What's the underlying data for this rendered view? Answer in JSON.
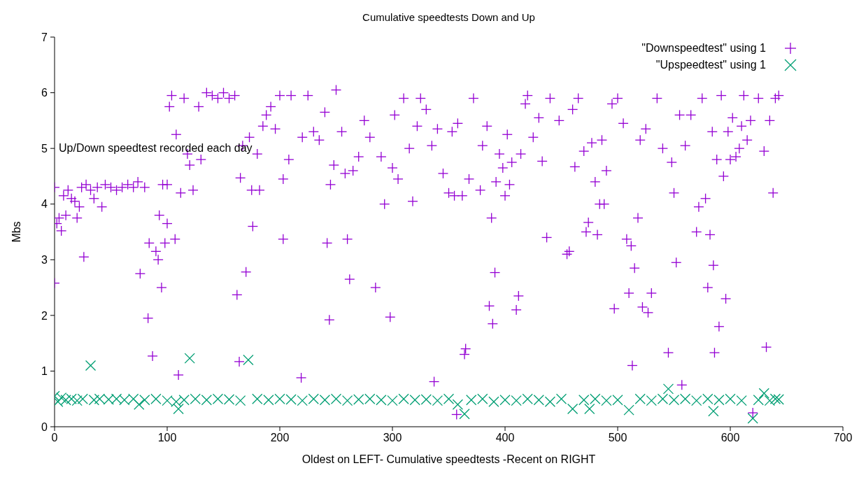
{
  "chart_data": {
    "type": "scatter",
    "title": "Cumulative speedtests Down and Up",
    "xlabel": "Oldest on LEFT- Cumulative speedtests -Recent on RIGHT",
    "ylabel": "Mbs",
    "annotations": [
      "Up/Down speedtest recorded each day"
    ],
    "xlim": [
      0,
      700
    ],
    "xticks": [
      0,
      100,
      200,
      300,
      400,
      500,
      600,
      700
    ],
    "ylim": [
      0,
      7
    ],
    "yticks": [
      0,
      1,
      2,
      3,
      4,
      5,
      6,
      7
    ],
    "grid": false,
    "legend": "top right",
    "series": [
      {
        "name": "\"Downspeedtest\" using 1",
        "color": "#9400d3",
        "marker": "plus",
        "x": [
          0,
          0,
          2,
          4,
          6,
          8,
          10,
          12,
          15,
          18,
          20,
          22,
          24,
          26,
          28,
          32,
          35,
          38,
          42,
          45,
          50,
          55,
          60,
          65,
          70,
          74,
          76,
          80,
          83,
          84,
          87,
          90,
          92,
          93,
          95,
          96,
          98,
          100,
          100,
          102,
          104,
          107,
          108,
          110,
          112,
          115,
          118,
          120,
          123,
          128,
          130,
          135,
          140,
          145,
          150,
          155,
          160,
          162,
          164,
          165,
          167,
          170,
          173,
          175,
          176,
          180,
          182,
          185,
          188,
          192,
          196,
          200,
          203,
          203,
          208,
          210,
          219,
          220,
          225,
          230,
          235,
          240,
          242,
          244,
          245,
          248,
          250,
          255,
          258,
          260,
          262,
          265,
          270,
          275,
          280,
          285,
          290,
          293,
          298,
          300,
          302,
          305,
          310,
          315,
          318,
          322,
          325,
          330,
          335,
          337,
          340,
          345,
          350,
          353,
          355,
          357,
          358,
          362,
          364,
          365,
          368,
          372,
          378,
          380,
          384,
          386,
          388,
          389,
          391,
          392,
          395,
          398,
          400,
          402,
          404,
          406,
          410,
          412,
          414,
          418,
          420,
          425,
          430,
          433,
          437,
          440,
          448,
          455,
          457,
          460,
          462,
          465,
          470,
          472,
          474,
          477,
          480,
          482,
          484,
          486,
          488,
          490,
          495,
          497,
          500,
          505,
          508,
          510,
          512,
          513,
          515,
          518,
          520,
          522,
          525,
          527,
          530,
          535,
          540,
          545,
          548,
          550,
          552,
          555,
          557,
          560,
          565,
          570,
          572,
          575,
          578,
          580,
          582,
          584,
          585,
          586,
          588,
          590,
          592,
          594,
          596,
          598,
          600,
          602,
          605,
          608,
          610,
          612,
          615,
          618,
          620,
          625,
          630,
          632,
          635,
          638,
          640,
          643
        ],
        "values": [
          4.3,
          2.58,
          3.65,
          3.75,
          3.52,
          4.15,
          3.8,
          4.25,
          4.1,
          4.05,
          3.75,
          3.95,
          4.3,
          3.05,
          4.35,
          4.25,
          4.1,
          4.3,
          3.95,
          4.35,
          4.3,
          4.25,
          4.3,
          4.35,
          4.3,
          4.4,
          2.75,
          4.3,
          1.95,
          3.3,
          1.27,
          3.15,
          3.0,
          3.8,
          2.5,
          4.35,
          3.3,
          3.65,
          4.35,
          5.75,
          5.95,
          3.37,
          5.25,
          0.93,
          4.2,
          5.9,
          4.9,
          4.7,
          4.25,
          5.75,
          4.8,
          6.0,
          5.95,
          5.9,
          6.0,
          5.9,
          5.95,
          2.37,
          1.17,
          4.47,
          5.05,
          2.78,
          5.2,
          4.25,
          3.6,
          4.9,
          4.25,
          5.4,
          5.6,
          5.75,
          5.35,
          5.95,
          3.37,
          4.45,
          4.8,
          5.95,
          0.88,
          5.2,
          5.95,
          5.3,
          5.15,
          5.65,
          3.3,
          1.92,
          4.35,
          4.7,
          6.05,
          5.3,
          4.55,
          3.37,
          2.65,
          4.6,
          4.85,
          5.5,
          5.2,
          2.5,
          4.85,
          4.0,
          1.97,
          4.65,
          5.6,
          4.45,
          5.9,
          5.0,
          4.05,
          5.4,
          5.9,
          5.7,
          5.05,
          0.81,
          5.35,
          4.55,
          4.2,
          5.3,
          4.15,
          0.22,
          5.45,
          4.15,
          1.3,
          1.4,
          4.45,
          5.9,
          4.25,
          5.05,
          5.4,
          2.17,
          3.75,
          1.85,
          2.77,
          4.4,
          4.9,
          4.65,
          4.15,
          5.25,
          4.35,
          4.75,
          2.1,
          2.35,
          4.9,
          5.8,
          5.95,
          5.2,
          5.55,
          4.77,
          3.4,
          5.9,
          5.5,
          3.1,
          3.15,
          5.7,
          4.67,
          5.9,
          4.95,
          3.5,
          3.67,
          5.1,
          4.4,
          3.45,
          4.0,
          5.15,
          4.0,
          4.6,
          5.8,
          2.12,
          5.9,
          5.45,
          3.37,
          2.4,
          3.25,
          1.1,
          2.85,
          3.75,
          5.15,
          2.15,
          5.35,
          2.05,
          2.4,
          5.9,
          5.0,
          1.33,
          4.75,
          4.2,
          2.95,
          5.6,
          0.75,
          5.05,
          5.6,
          3.5,
          3.95,
          5.9,
          4.1,
          2.5,
          3.45,
          5.3,
          2.9,
          1.33,
          4.8,
          1.8,
          5.95,
          4.5,
          2.3,
          5.3,
          4.8,
          5.55,
          4.85,
          5.0,
          5.4,
          5.95,
          5.15,
          5.5,
          0.25,
          5.9,
          4.95,
          1.43,
          5.5,
          4.2,
          5.9,
          5.95
        ]
      },
      {
        "name": "\"Upspeedtest\" using 1",
        "color": "#009e73",
        "marker": "cross",
        "x": [
          0,
          3,
          6,
          10,
          15,
          20,
          25,
          32,
          35,
          40,
          48,
          55,
          62,
          70,
          75,
          80,
          90,
          100,
          108,
          110,
          115,
          120,
          125,
          135,
          145,
          155,
          165,
          172,
          180,
          190,
          200,
          210,
          220,
          230,
          240,
          250,
          260,
          270,
          280,
          290,
          300,
          310,
          320,
          330,
          340,
          350,
          358,
          364,
          370,
          380,
          390,
          400,
          410,
          420,
          430,
          440,
          450,
          460,
          470,
          475,
          480,
          490,
          500,
          510,
          520,
          530,
          540,
          545,
          550,
          560,
          570,
          580,
          585,
          590,
          600,
          610,
          620,
          625,
          630,
          635,
          640,
          643
        ],
        "values": [
          0.55,
          0.45,
          0.52,
          0.48,
          0.5,
          0.47,
          0.5,
          1.1,
          0.48,
          0.5,
          0.49,
          0.5,
          0.48,
          0.5,
          0.4,
          0.48,
          0.5,
          0.47,
          0.45,
          0.32,
          0.48,
          1.23,
          0.5,
          0.48,
          0.5,
          0.49,
          0.47,
          1.2,
          0.5,
          0.48,
          0.5,
          0.49,
          0.47,
          0.5,
          0.48,
          0.5,
          0.47,
          0.49,
          0.5,
          0.48,
          0.47,
          0.5,
          0.48,
          0.49,
          0.47,
          0.5,
          0.4,
          0.23,
          0.48,
          0.5,
          0.45,
          0.48,
          0.47,
          0.5,
          0.48,
          0.45,
          0.5,
          0.32,
          0.48,
          0.32,
          0.5,
          0.47,
          0.48,
          0.3,
          0.5,
          0.47,
          0.5,
          0.68,
          0.48,
          0.5,
          0.47,
          0.5,
          0.28,
          0.48,
          0.5,
          0.47,
          0.15,
          0.48,
          0.6,
          0.47,
          0.5,
          0.49
        ]
      }
    ]
  }
}
